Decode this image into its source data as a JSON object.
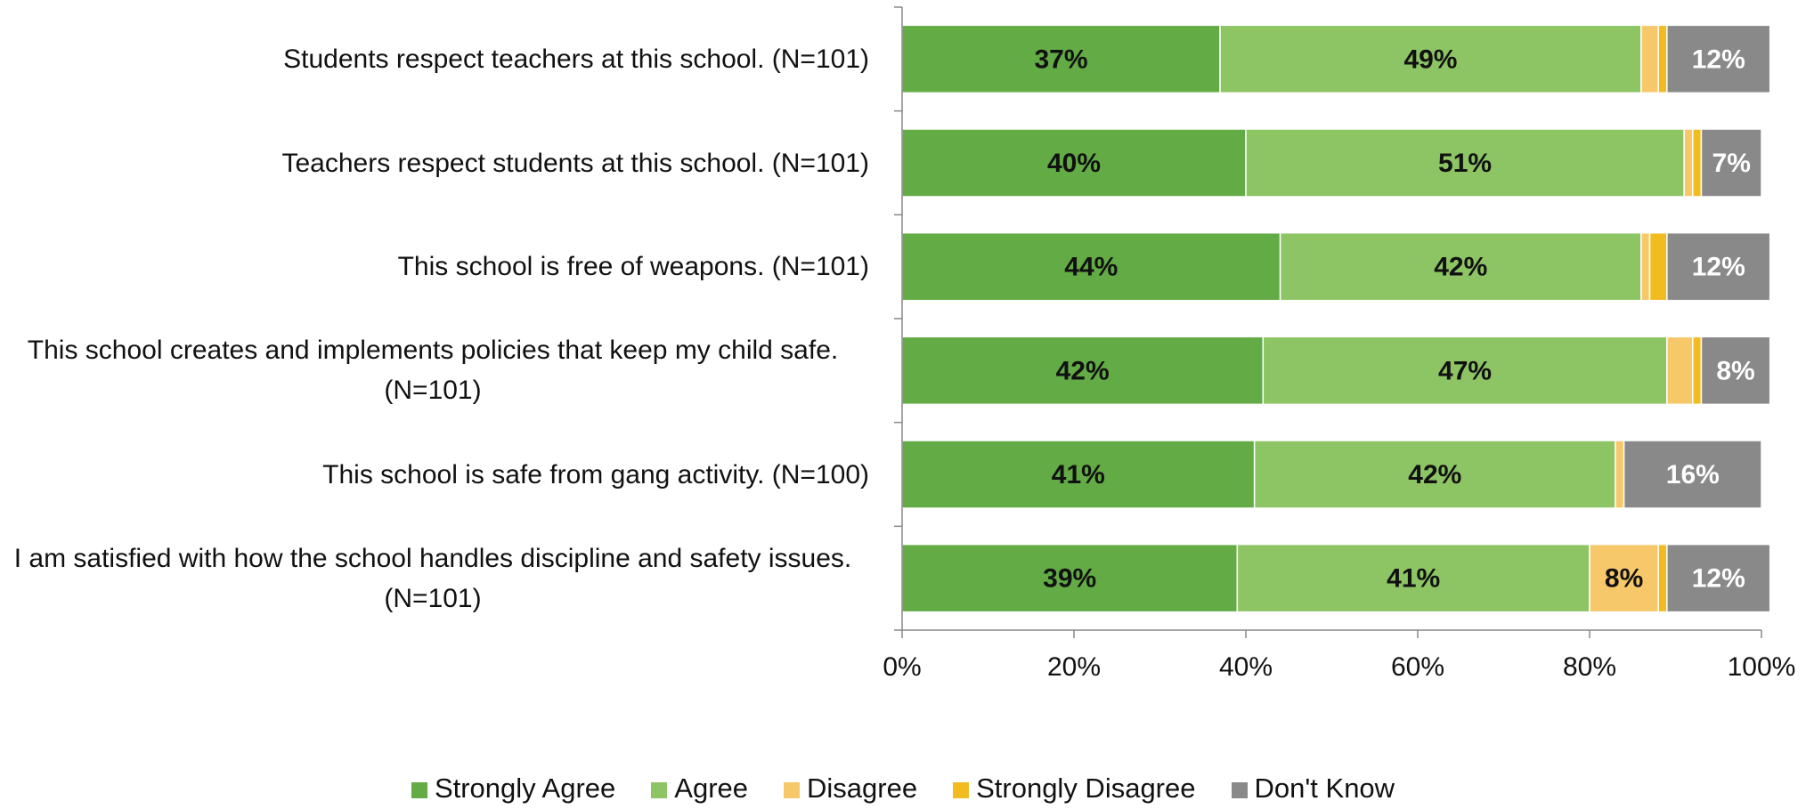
{
  "chart_data": {
    "type": "bar",
    "orientation": "horizontal",
    "stacked": true,
    "categories": [
      "Students respect teachers at this school. (N=101)",
      "Teachers respect students at this school. (N=101)",
      "This school is free of weapons. (N=101)",
      "This school creates and implements policies that keep my child safe. (N=101)",
      "This school is safe from gang activity. (N=100)",
      "I am satisfied with how the school handles discipline and safety issues. (N=101)"
    ],
    "series": [
      {
        "name": "Strongly Agree",
        "color": "#62ab45",
        "label_color": "#111111",
        "values": [
          37,
          40,
          44,
          42,
          41,
          39
        ],
        "labels": [
          "37%",
          "40%",
          "44%",
          "42%",
          "41%",
          "39%"
        ]
      },
      {
        "name": "Agree",
        "color": "#8dc464",
        "label_color": "#111111",
        "values": [
          49,
          51,
          42,
          47,
          42,
          41
        ],
        "labels": [
          "49%",
          "51%",
          "42%",
          "47%",
          "42%",
          "41%"
        ]
      },
      {
        "name": "Disagree",
        "color": "#f7c86a",
        "label_color": "#111111",
        "values": [
          2,
          1,
          1,
          3,
          1,
          8
        ],
        "labels": [
          "",
          "",
          "",
          "",
          "",
          "8%"
        ]
      },
      {
        "name": "Strongly Disagree",
        "color": "#f2bc20",
        "label_color": "#111111",
        "values": [
          1,
          1,
          2,
          1,
          0,
          1
        ],
        "labels": [
          "",
          "",
          "",
          "",
          "",
          ""
        ]
      },
      {
        "name": "Don't Know",
        "color": "#898989",
        "label_color": "#ffffff",
        "values": [
          12,
          7,
          12,
          8,
          16,
          12
        ],
        "labels": [
          "12%",
          "7%",
          "12%",
          "8%",
          "16%",
          "12%"
        ]
      }
    ],
    "xlim": [
      0,
      100
    ],
    "xticks": [
      "0%",
      "20%",
      "40%",
      "60%",
      "80%",
      "100%"
    ],
    "grid": false,
    "legend_position": "bottom"
  }
}
